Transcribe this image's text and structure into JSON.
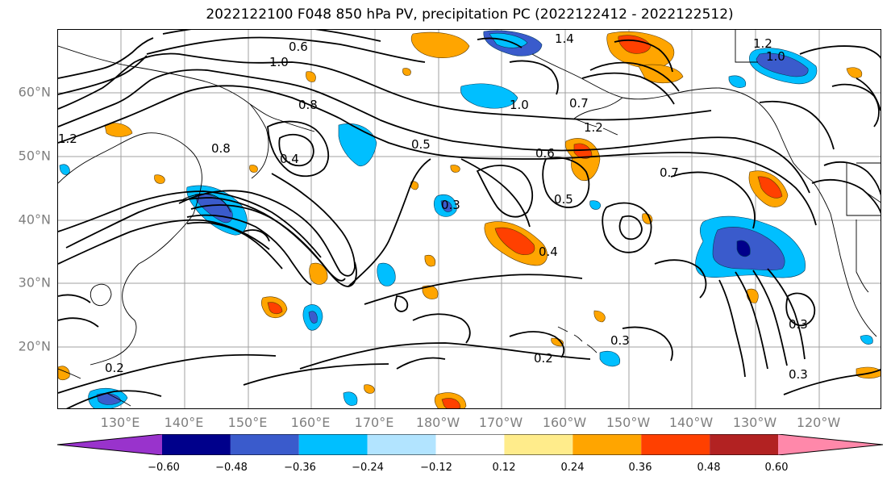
{
  "title": "2022122100 F048 850 hPa PV, precipitation PC (2022122412 - 2022122512)",
  "lat_labels": [
    "60°N",
    "50°N",
    "40°N",
    "30°N",
    "20°N"
  ],
  "lon_labels": [
    "130°E",
    "140°E",
    "150°E",
    "160°E",
    "170°E",
    "180°W",
    "170°W",
    "160°W",
    "150°W",
    "140°W",
    "130°W",
    "120°W"
  ],
  "contour_labels": [
    "0.2",
    "0.2",
    "0.3",
    "0.3",
    "0.3",
    "0.3",
    "0.4",
    "0.4",
    "0.5",
    "0.5",
    "0.6",
    "0.6",
    "0.7",
    "0.7",
    "0.8",
    "0.8",
    "1.0",
    "1.0",
    "1.0",
    "1.2",
    "1.2",
    "1.4",
    "1.2"
  ],
  "colorbar": {
    "colors": [
      "#9933cc",
      "#00008b",
      "#3a5bcc",
      "#00bfff",
      "#b2e4ff",
      "#ffffff",
      "#ffec8b",
      "#ffa500",
      "#ff4000",
      "#b22222",
      "#ff88aa"
    ],
    "ticks": [
      "−0.60",
      "−0.48",
      "−0.36",
      "−0.24",
      "−0.12",
      "0.12",
      "0.24",
      "0.36",
      "0.48",
      "0.60"
    ]
  }
}
